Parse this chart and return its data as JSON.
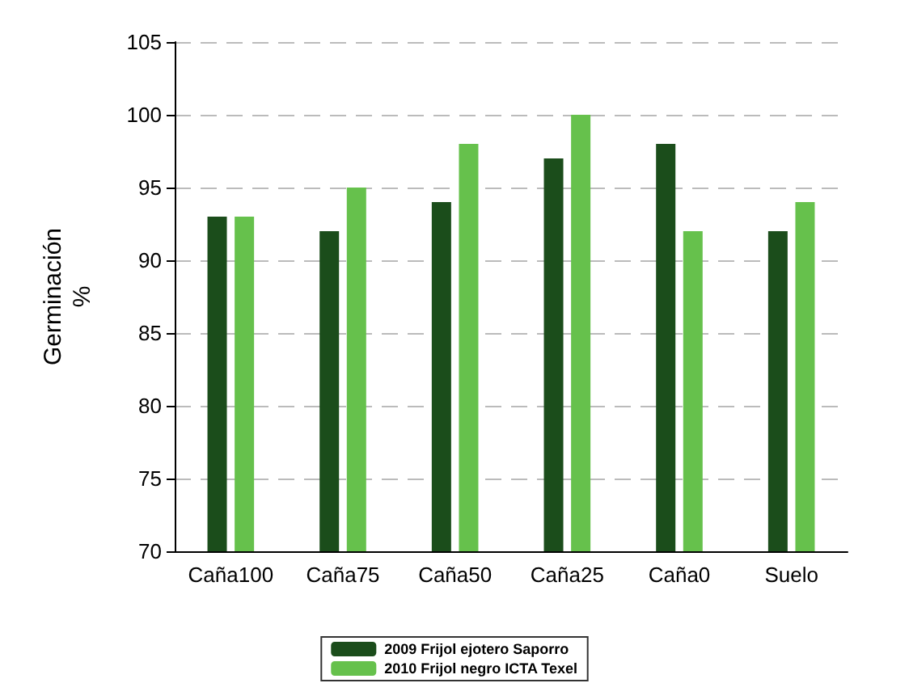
{
  "chart_data": {
    "type": "bar",
    "ylabel": "Germinación\n%",
    "categories": [
      "Caña100",
      "Caña75",
      "Caña50",
      "Caña25",
      "Caña0",
      "Suelo"
    ],
    "series": [
      {
        "name": "2009 Frijol ejotero Saporro",
        "color": "#1b4d1b",
        "values": [
          93,
          92,
          94,
          97,
          98,
          92
        ]
      },
      {
        "name": "2010 Frijol negro ICTA Texel",
        "color": "#66c14c",
        "values": [
          93,
          95,
          98,
          100,
          92,
          94
        ]
      }
    ],
    "ylim": [
      70,
      105
    ],
    "yticks": [
      70,
      75,
      80,
      85,
      90,
      95,
      100,
      105
    ],
    "grid": "y",
    "legend": "bottom"
  }
}
